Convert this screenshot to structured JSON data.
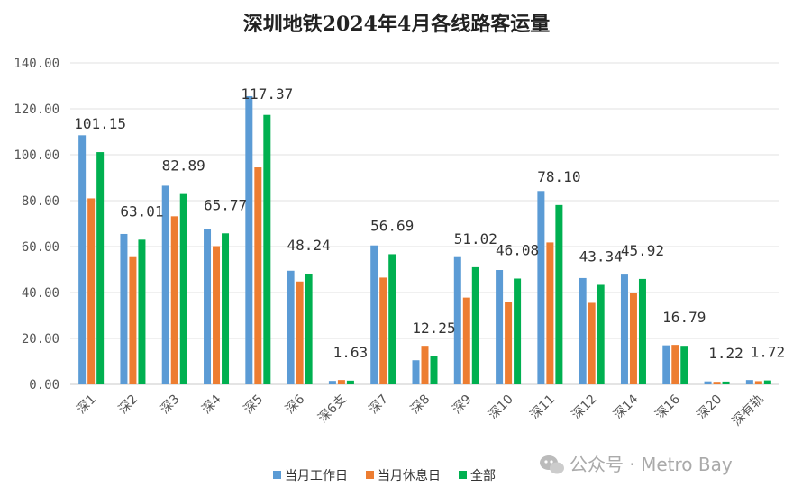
{
  "chart_data": {
    "type": "bar",
    "title": "深圳地铁2024年4月各线路客运量",
    "categories": [
      "深1",
      "深2",
      "深3",
      "深4",
      "深5",
      "深6",
      "深6支",
      "深7",
      "深8",
      "深9",
      "深10",
      "深11",
      "深12",
      "深14",
      "深16",
      "深20",
      "深有轨"
    ],
    "series": [
      {
        "name": "当月工作日",
        "color": "#5b9bd5",
        "values": [
          108.5,
          65.5,
          86.5,
          67.5,
          125.5,
          49.5,
          1.5,
          60.5,
          10.5,
          55.8,
          49.8,
          84.2,
          46.3,
          48.2,
          17.0,
          1.3,
          1.9
        ]
      },
      {
        "name": "当月休息日",
        "color": "#ed7d31",
        "values": [
          81.0,
          55.8,
          73.2,
          60.2,
          94.5,
          44.8,
          1.9,
          46.5,
          16.8,
          37.8,
          35.8,
          61.8,
          35.5,
          39.8,
          17.2,
          1.1,
          1.4
        ]
      },
      {
        "name": "全部",
        "color": "#00b050",
        "values": [
          101.15,
          63.01,
          82.89,
          65.77,
          117.37,
          48.24,
          1.63,
          56.69,
          12.25,
          51.02,
          46.08,
          78.1,
          43.34,
          45.92,
          16.79,
          1.22,
          1.72
        ]
      }
    ],
    "data_labels": [
      "101.15",
      "63.01",
      "82.89",
      "65.77",
      "117.37",
      "48.24",
      "1.63",
      "56.69",
      "12.25",
      "51.02",
      "46.08",
      "78.10",
      "43.34",
      "45.92",
      "16.79",
      "1.22",
      "1.72"
    ],
    "yticks": [
      "0.00",
      "20.00",
      "40.00",
      "60.00",
      "80.00",
      "100.00",
      "120.00",
      "140.00"
    ],
    "ylim": [
      0,
      140
    ],
    "grid": true,
    "legend_position": "bottom-center",
    "xlabel": "",
    "ylabel": ""
  },
  "watermark": {
    "text": "公众号 · Metro Bay",
    "icon": "wechat-icon"
  }
}
